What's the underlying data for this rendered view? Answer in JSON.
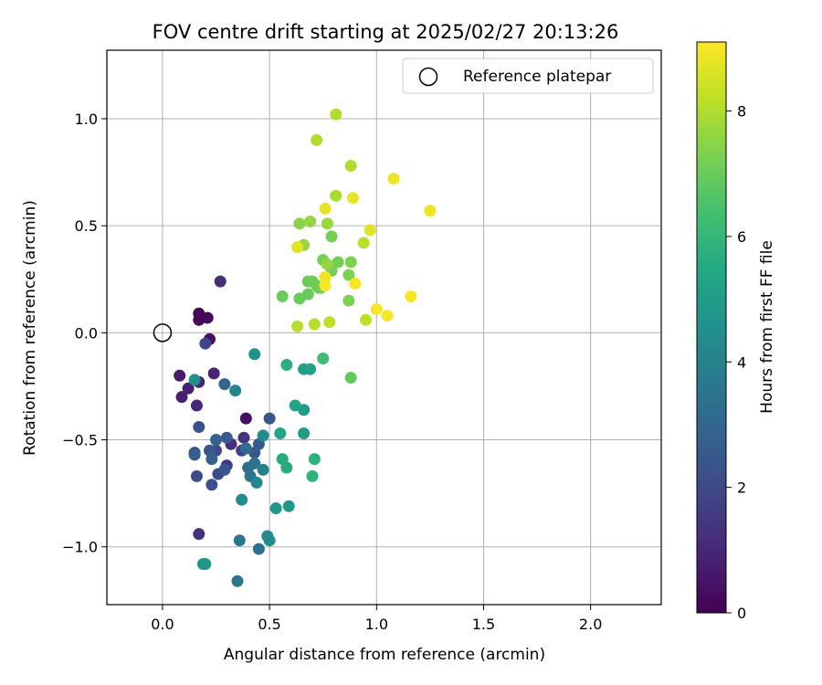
{
  "chart_data": {
    "type": "scatter",
    "title": "FOV centre drift starting at 2025/02/27 20:13:26",
    "xlabel": "Angular distance from reference (arcmin)",
    "ylabel": "Rotation from reference (arcmin)",
    "xlim": [
      -0.26,
      2.33
    ],
    "ylim": [
      -1.27,
      1.32
    ],
    "xticks": [
      0.0,
      0.5,
      1.0,
      1.5,
      2.0
    ],
    "xtick_labels": [
      "0.0",
      "0.5",
      "1.0",
      "1.5",
      "2.0"
    ],
    "yticks": [
      -1.0,
      -0.5,
      0.0,
      0.5,
      1.0
    ],
    "ytick_labels": [
      "−1.0",
      "−0.5",
      "0.0",
      "0.5",
      "1.0"
    ],
    "grid": true,
    "legend": {
      "placement": "top-right",
      "entries": [
        "Reference platepar"
      ]
    },
    "reference_point": {
      "x": 0.0,
      "y": 0.0
    },
    "colorbar": {
      "label": "Hours from first FF file",
      "colormap": "viridis",
      "range": [
        0,
        9.1
      ],
      "ticks": [
        0,
        2,
        4,
        6,
        8
      ],
      "tick_labels": [
        "0",
        "2",
        "4",
        "6",
        "8"
      ]
    },
    "points": [
      [
        0.17,
        0.09,
        0.1
      ],
      [
        0.17,
        0.06,
        0.2
      ],
      [
        0.21,
        0.07,
        0.2
      ],
      [
        0.22,
        -0.03,
        0.4
      ],
      [
        0.39,
        -0.4,
        0.4
      ],
      [
        0.08,
        -0.2,
        0.7
      ],
      [
        0.09,
        -0.3,
        0.8
      ],
      [
        0.12,
        -0.26,
        0.8
      ],
      [
        0.17,
        -0.23,
        0.9
      ],
      [
        0.24,
        -0.19,
        0.9
      ],
      [
        0.16,
        -0.34,
        1.0
      ],
      [
        0.27,
        0.24,
        1.2
      ],
      [
        0.17,
        -0.94,
        1.3
      ],
      [
        0.32,
        -0.52,
        1.2
      ],
      [
        0.38,
        -0.49,
        1.3
      ],
      [
        0.3,
        -0.62,
        1.5
      ],
      [
        0.37,
        -0.55,
        1.8
      ],
      [
        0.2,
        -0.05,
        1.9
      ],
      [
        0.25,
        -0.55,
        2.0
      ],
      [
        0.26,
        -0.66,
        2.1
      ],
      [
        0.16,
        -0.67,
        2.1
      ],
      [
        0.23,
        -0.71,
        2.2
      ],
      [
        0.17,
        -0.44,
        2.2
      ],
      [
        0.15,
        -0.56,
        2.2
      ],
      [
        0.29,
        -0.64,
        2.4
      ],
      [
        0.22,
        -0.55,
        2.4
      ],
      [
        0.5,
        -0.4,
        2.5
      ],
      [
        0.43,
        -0.56,
        2.5
      ],
      [
        0.45,
        -0.52,
        2.6
      ],
      [
        0.3,
        -0.49,
        2.6
      ],
      [
        0.25,
        -0.5,
        2.8
      ],
      [
        0.23,
        -0.59,
        2.8
      ],
      [
        0.15,
        -0.57,
        2.7
      ],
      [
        0.29,
        -0.24,
        3.0
      ],
      [
        0.39,
        -0.54,
        3.2
      ],
      [
        0.4,
        -0.63,
        3.3
      ],
      [
        0.43,
        -0.61,
        3.4
      ],
      [
        0.41,
        -0.67,
        3.5
      ],
      [
        0.45,
        -1.01,
        3.4
      ],
      [
        0.36,
        -0.97,
        3.6
      ],
      [
        0.35,
        -1.16,
        3.6
      ],
      [
        0.47,
        -0.64,
        4.0
      ],
      [
        0.34,
        -0.27,
        4.1
      ],
      [
        0.44,
        -0.7,
        4.2
      ],
      [
        0.37,
        -0.78,
        4.3
      ],
      [
        0.47,
        -0.48,
        4.3
      ],
      [
        0.49,
        -0.95,
        4.3
      ],
      [
        0.5,
        -0.97,
        4.4
      ],
      [
        0.19,
        -1.08,
        4.7
      ],
      [
        0.2,
        -1.08,
        4.8
      ],
      [
        0.15,
        -0.22,
        4.5
      ],
      [
        0.43,
        -0.1,
        4.6
      ],
      [
        0.53,
        -0.82,
        4.8
      ],
      [
        0.59,
        -0.81,
        4.8
      ],
      [
        0.66,
        -0.47,
        5.0
      ],
      [
        0.66,
        -0.36,
        5.0
      ],
      [
        0.66,
        -0.17,
        5.1
      ],
      [
        0.69,
        -0.17,
        5.2
      ],
      [
        0.62,
        -0.34,
        5.3
      ],
      [
        0.55,
        -0.47,
        5.4
      ],
      [
        0.56,
        -0.59,
        5.6
      ],
      [
        0.58,
        -0.63,
        5.6
      ],
      [
        0.58,
        -0.15,
        5.7
      ],
      [
        0.71,
        -0.59,
        5.8
      ],
      [
        0.7,
        -0.67,
        5.9
      ],
      [
        0.75,
        -0.12,
        6.2
      ],
      [
        0.88,
        -0.21,
        6.9
      ],
      [
        0.56,
        0.17,
        7.0
      ],
      [
        0.64,
        0.16,
        7.0
      ],
      [
        0.68,
        0.18,
        7.0
      ],
      [
        0.68,
        0.24,
        7.0
      ],
      [
        0.7,
        0.24,
        7.1
      ],
      [
        0.72,
        0.22,
        7.1
      ],
      [
        0.73,
        0.21,
        7.1
      ],
      [
        0.74,
        0.21,
        7.1
      ],
      [
        0.75,
        0.34,
        7.2
      ],
      [
        0.79,
        0.29,
        7.2
      ],
      [
        0.79,
        0.45,
        7.2
      ],
      [
        0.82,
        0.33,
        7.2
      ],
      [
        0.87,
        0.27,
        7.3
      ],
      [
        0.87,
        0.15,
        7.3
      ],
      [
        0.88,
        0.33,
        7.3
      ],
      [
        0.64,
        0.51,
        7.5
      ],
      [
        0.66,
        0.41,
        7.6
      ],
      [
        0.69,
        0.52,
        7.6
      ],
      [
        0.77,
        0.51,
        7.7
      ],
      [
        0.77,
        0.32,
        7.6
      ],
      [
        0.81,
        1.02,
        8.0
      ],
      [
        0.72,
        0.9,
        8.0
      ],
      [
        0.88,
        0.78,
        8.0
      ],
      [
        0.81,
        0.64,
        7.9
      ],
      [
        0.94,
        0.42,
        8.1
      ],
      [
        0.63,
        0.03,
        8.1
      ],
      [
        0.71,
        0.04,
        8.1
      ],
      [
        0.78,
        0.05,
        8.2
      ],
      [
        0.95,
        0.06,
        8.2
      ],
      [
        0.63,
        0.4,
        8.7
      ],
      [
        0.76,
        0.58,
        8.8
      ],
      [
        0.89,
        0.63,
        8.8
      ],
      [
        0.97,
        0.48,
        8.7
      ],
      [
        1.08,
        0.72,
        8.9
      ],
      [
        1.25,
        0.57,
        8.9
      ],
      [
        0.76,
        0.26,
        8.9
      ],
      [
        0.76,
        0.22,
        9.0
      ],
      [
        0.9,
        0.23,
        9.0
      ],
      [
        1.0,
        0.11,
        9.0
      ],
      [
        1.05,
        0.08,
        9.0
      ],
      [
        1.16,
        0.17,
        9.0
      ]
    ]
  }
}
